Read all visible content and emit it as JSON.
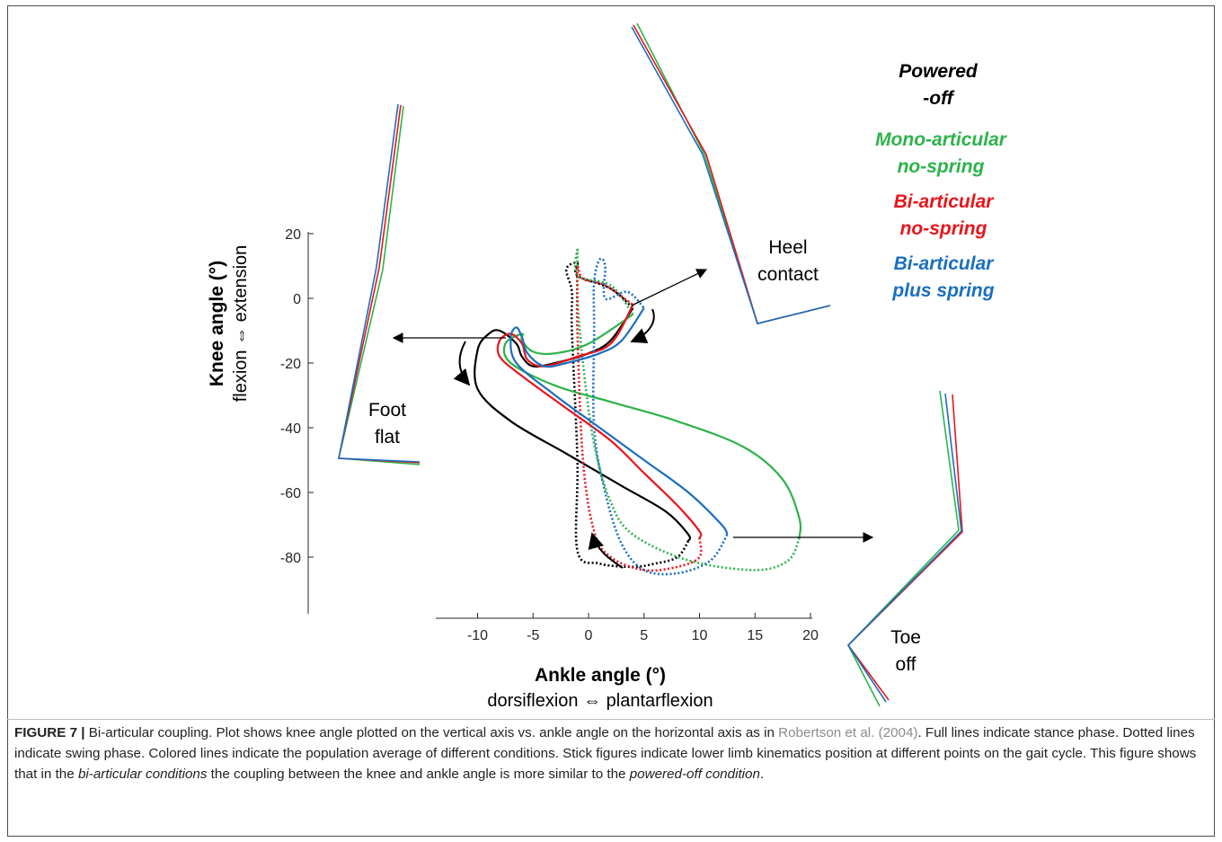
{
  "chart_data": {
    "type": "line",
    "x_axis": {
      "title": "Ankle angle (°)",
      "subtitle": "dorsiflexion ⇔ plantarflexion",
      "ticks": [
        -10,
        -5,
        0,
        5,
        10,
        15,
        20
      ],
      "range": [
        -13.5,
        20
      ]
    },
    "y_axis": {
      "title": "Knee angle (°)",
      "subtitle": "flexion ⇔ extension",
      "ticks": [
        20,
        0,
        -20,
        -40,
        -60,
        -80
      ],
      "range": [
        -97,
        20
      ]
    },
    "legend": {
      "placement": "top-right",
      "entries": [
        {
          "label_line1": "Powered",
          "label_line2": "-off",
          "color": "#000000"
        },
        {
          "label_line1": "Mono-articular",
          "label_line2": "no-spring",
          "color": "#2db34a"
        },
        {
          "label_line1": "Bi-articular",
          "label_line2": "no-spring",
          "color": "#e8151b"
        },
        {
          "label_line1": "Bi-articular",
          "label_line2": "plus spring",
          "color": "#1a6fc0"
        }
      ]
    },
    "annotations": {
      "heel_contact": {
        "line1": "Heel",
        "line2": "contact"
      },
      "foot_flat": {
        "line1": "Foot",
        "line2": "flat"
      },
      "toe_off": {
        "line1": "Toe",
        "line2": "off"
      }
    },
    "series": [
      {
        "condition": "powered-off",
        "color": "#000000",
        "stance": [
          [
            4,
            -3
          ],
          [
            2,
            -13
          ],
          [
            0,
            -17
          ],
          [
            -3,
            -20
          ],
          [
            -5,
            -21
          ],
          [
            -6,
            -18
          ],
          [
            -6.5,
            -14
          ],
          [
            -8,
            -10
          ],
          [
            -9,
            -11
          ],
          [
            -10,
            -16
          ],
          [
            -10,
            -28
          ],
          [
            -7,
            -38
          ],
          [
            -2,
            -48
          ],
          [
            3,
            -58
          ],
          [
            7,
            -66
          ],
          [
            9,
            -73
          ],
          [
            9,
            -75
          ]
        ],
        "swing": [
          [
            9,
            -75
          ],
          [
            8,
            -80
          ],
          [
            6,
            -82
          ],
          [
            4,
            -83
          ],
          [
            1,
            -82
          ],
          [
            -1,
            -78
          ],
          [
            -1,
            -50
          ],
          [
            -1.5,
            -10
          ],
          [
            -1.5,
            2
          ],
          [
            -2,
            9
          ],
          [
            -1,
            11
          ],
          [
            -1,
            7
          ],
          [
            2,
            3
          ],
          [
            4,
            -3
          ]
        ]
      },
      {
        "condition": "mono-articular no-spring",
        "color": "#2db34a",
        "stance": [
          [
            4,
            -5
          ],
          [
            0,
            -14
          ],
          [
            -3,
            -17
          ],
          [
            -5,
            -16.5
          ],
          [
            -6,
            -13
          ],
          [
            -6,
            -11
          ],
          [
            -7.5,
            -14
          ],
          [
            -7,
            -20
          ],
          [
            -3,
            -27
          ],
          [
            2,
            -32
          ],
          [
            8,
            -38
          ],
          [
            14,
            -46
          ],
          [
            17.5,
            -56
          ],
          [
            19,
            -68
          ],
          [
            19,
            -74
          ]
        ],
        "swing": [
          [
            19,
            -74
          ],
          [
            18,
            -81
          ],
          [
            15,
            -84
          ],
          [
            9,
            -81
          ],
          [
            4,
            -73
          ],
          [
            2,
            -63
          ],
          [
            0.5,
            -45
          ],
          [
            -0.5,
            -20
          ],
          [
            -1,
            0
          ],
          [
            -1,
            10
          ],
          [
            -1,
            15
          ],
          [
            -1,
            7
          ],
          [
            2,
            4
          ],
          [
            4,
            -5
          ]
        ]
      },
      {
        "condition": "bi-articular no-spring",
        "color": "#e8151b",
        "stance": [
          [
            4,
            -2
          ],
          [
            2,
            -14
          ],
          [
            -1,
            -18
          ],
          [
            -4,
            -21
          ],
          [
            -5.5,
            -19
          ],
          [
            -6,
            -14
          ],
          [
            -7,
            -11
          ],
          [
            -8,
            -13
          ],
          [
            -8,
            -18
          ],
          [
            -6,
            -24
          ],
          [
            -2,
            -34
          ],
          [
            2,
            -44
          ],
          [
            5,
            -54
          ],
          [
            8,
            -64
          ],
          [
            10,
            -72
          ],
          [
            10,
            -74
          ]
        ],
        "swing": [
          [
            10,
            -74
          ],
          [
            10,
            -80
          ],
          [
            8,
            -83
          ],
          [
            5,
            -84
          ],
          [
            2,
            -80
          ],
          [
            0.5,
            -72
          ],
          [
            -0.5,
            -50
          ],
          [
            -1,
            -10
          ],
          [
            -1,
            4
          ],
          [
            -1,
            10
          ],
          [
            -0.5,
            6
          ],
          [
            1.5,
            4
          ],
          [
            4,
            -2
          ]
        ]
      },
      {
        "condition": "bi-articular plus spring",
        "color": "#1a6fc0",
        "stance": [
          [
            5,
            -3
          ],
          [
            3,
            -13
          ],
          [
            1,
            -17
          ],
          [
            -2,
            -20
          ],
          [
            -4,
            -21
          ],
          [
            -5.5,
            -17
          ],
          [
            -6,
            -12
          ],
          [
            -6.5,
            -9
          ],
          [
            -7,
            -12
          ],
          [
            -6.5,
            -20
          ],
          [
            -3,
            -30
          ],
          [
            1,
            -40
          ],
          [
            5,
            -50
          ],
          [
            9,
            -60
          ],
          [
            12,
            -70
          ],
          [
            12.5,
            -73
          ]
        ],
        "swing": [
          [
            12.5,
            -73
          ],
          [
            11,
            -81
          ],
          [
            8,
            -85
          ],
          [
            5,
            -84
          ],
          [
            3,
            -76
          ],
          [
            1.5,
            -60
          ],
          [
            0.5,
            -40
          ],
          [
            0.5,
            -10
          ],
          [
            0.5,
            5
          ],
          [
            1,
            12
          ],
          [
            1.5,
            10
          ],
          [
            1.5,
            0
          ],
          [
            3.5,
            2
          ],
          [
            5,
            -3
          ]
        ]
      }
    ]
  },
  "caption": {
    "label": "FIGURE 7 |",
    "text1": " Bi-articular coupling. Plot shows knee angle plotted on the vertical axis vs. ankle angle on the horizontal axis as in ",
    "ref": "Robertson et al. (2004)",
    "text2": ". Full lines indicate stance phase. Dotted lines indicate swing phase. Colored lines indicate the population average of different conditions. Stick figures indicate lower limb kinematics position at different points on the gait cycle. This figure shows that in the ",
    "em1": "bi-articular conditions",
    "text3": " the coupling between the knee and ankle angle is more similar to the ",
    "em2": "powered-off condition",
    "text4": "."
  }
}
